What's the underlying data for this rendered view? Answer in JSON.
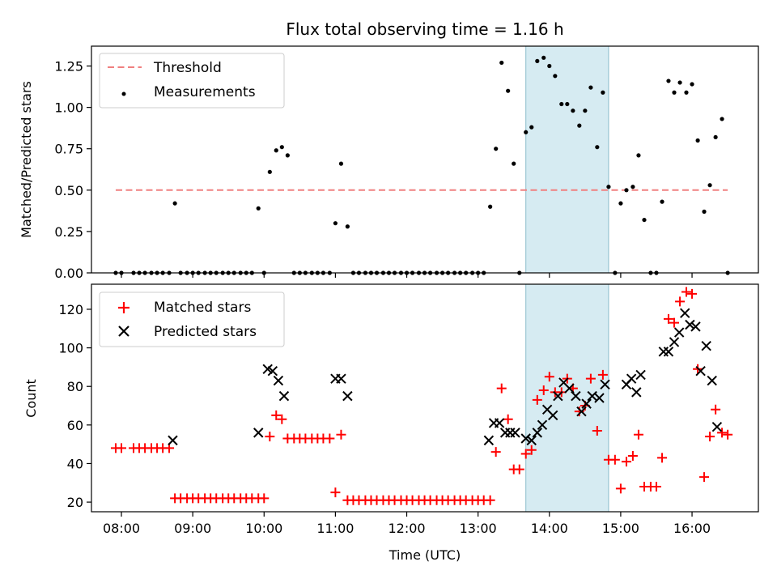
{
  "title": "Flux total observing time = 1.16 h",
  "colors": {
    "threshold": "#f08080",
    "matched": "#ff0000",
    "predicted": "#000000",
    "measurement": "#000000",
    "highlight": "#add8e6"
  },
  "chart_data": [
    {
      "type": "scatter",
      "ylabel": "Matched/Predicted stars",
      "xlabel": "",
      "xlim": [
        7.58,
        16.93
      ],
      "ylim": [
        0,
        1.37
      ],
      "yticks": [
        0.0,
        0.25,
        0.5,
        0.75,
        1.0,
        1.25
      ],
      "ytick_labels": [
        "0.00",
        "0.25",
        "0.50",
        "0.75",
        "1.00",
        "1.25"
      ],
      "xticks": [
        8,
        9,
        10,
        11,
        12,
        13,
        14,
        15,
        16
      ],
      "highlight_span": [
        13.67,
        14.83
      ],
      "legend_position": "top-left",
      "legend": [
        {
          "label": "Threshold"
        },
        {
          "label": "Measurements"
        }
      ],
      "threshold": {
        "name": "Threshold",
        "x": [
          7.92,
          16.5
        ],
        "y": 0.5
      },
      "series": [
        {
          "name": "Measurements",
          "x": [
            7.92,
            8.0,
            8.17,
            8.25,
            8.33,
            8.42,
            8.5,
            8.58,
            8.67,
            8.75,
            8.83,
            8.92,
            9.0,
            9.08,
            9.17,
            9.25,
            9.33,
            9.42,
            9.5,
            9.58,
            9.67,
            9.75,
            9.83,
            9.92,
            10.0,
            10.08,
            10.17,
            10.25,
            10.33,
            10.42,
            10.5,
            10.58,
            10.67,
            10.75,
            10.83,
            10.92,
            11.0,
            11.08,
            11.17,
            11.25,
            11.33,
            11.42,
            11.5,
            11.58,
            11.67,
            11.75,
            11.83,
            11.92,
            12.0,
            12.08,
            12.17,
            12.25,
            12.33,
            12.42,
            12.5,
            12.58,
            12.67,
            12.75,
            12.83,
            12.92,
            13.0,
            13.08,
            13.17,
            13.25,
            13.33,
            13.42,
            13.5,
            13.58,
            13.67,
            13.75,
            13.83,
            13.92,
            14.0,
            14.08,
            14.17,
            14.25,
            14.33,
            14.42,
            14.5,
            14.58,
            14.67,
            14.75,
            14.83,
            14.92,
            15.0,
            15.08,
            15.17,
            15.25,
            15.33,
            15.42,
            15.5,
            15.58,
            15.67,
            15.75,
            15.83,
            15.92,
            16.0,
            16.08,
            16.17,
            16.25,
            16.33,
            16.42,
            16.5
          ],
          "y": [
            0,
            0,
            0,
            0,
            0,
            0,
            0,
            0,
            0,
            0.42,
            0,
            0,
            0,
            0,
            0,
            0,
            0,
            0,
            0,
            0,
            0,
            0,
            0,
            0.39,
            0,
            0.61,
            0.74,
            0.76,
            0.71,
            0,
            0,
            0,
            0,
            0,
            0,
            0,
            0.3,
            0.66,
            0.28,
            0,
            0,
            0,
            0,
            0,
            0,
            0,
            0,
            0,
            0,
            0,
            0,
            0,
            0,
            0,
            0,
            0,
            0,
            0,
            0,
            0,
            0,
            0,
            0.4,
            0.75,
            1.27,
            1.1,
            0.66,
            0,
            0.85,
            0.88,
            1.28,
            1.3,
            1.25,
            1.19,
            1.02,
            1.02,
            0.98,
            0.89,
            0.98,
            1.12,
            0.76,
            1.09,
            0.52,
            0,
            0.42,
            0.5,
            0.52,
            0.71,
            0.32,
            0,
            0,
            0.43,
            1.16,
            1.09,
            1.15,
            1.09,
            1.14,
            0.8,
            0.37,
            0.53,
            0.82,
            0.93,
            0
          ]
        }
      ]
    },
    {
      "type": "scatter",
      "ylabel": "Count",
      "xlabel": "Time (UTC)",
      "xlim": [
        7.58,
        16.93
      ],
      "ylim": [
        15,
        133
      ],
      "yticks": [
        20,
        40,
        60,
        80,
        100,
        120
      ],
      "xticks": [
        8,
        9,
        10,
        11,
        12,
        13,
        14,
        15,
        16
      ],
      "xtick_labels": [
        "08:00",
        "09:00",
        "10:00",
        "11:00",
        "12:00",
        "13:00",
        "14:00",
        "15:00",
        "16:00"
      ],
      "highlight_span": [
        13.67,
        14.83
      ],
      "legend_position": "top-left",
      "legend": [
        {
          "label": "Matched stars"
        },
        {
          "label": "Predicted stars"
        }
      ],
      "series": [
        {
          "name": "Matched stars",
          "x": [
            7.92,
            8.0,
            8.17,
            8.25,
            8.33,
            8.42,
            8.5,
            8.58,
            8.67,
            8.75,
            8.83,
            8.92,
            9.0,
            9.08,
            9.17,
            9.25,
            9.33,
            9.42,
            9.5,
            9.58,
            9.67,
            9.75,
            9.83,
            9.92,
            10.0,
            10.08,
            10.17,
            10.25,
            10.33,
            10.42,
            10.5,
            10.58,
            10.67,
            10.75,
            10.83,
            10.92,
            11.0,
            11.08,
            11.17,
            11.25,
            11.33,
            11.42,
            11.5,
            11.58,
            11.67,
            11.75,
            11.83,
            11.92,
            12.0,
            12.08,
            12.17,
            12.25,
            12.33,
            12.42,
            12.5,
            12.58,
            12.67,
            12.75,
            12.83,
            12.92,
            13.0,
            13.08,
            13.17,
            13.25,
            13.33,
            13.42,
            13.5,
            13.58,
            13.67,
            13.75,
            13.83,
            13.92,
            14.0,
            14.08,
            14.17,
            14.25,
            14.33,
            14.42,
            14.5,
            14.58,
            14.67,
            14.75,
            14.83,
            14.92,
            15.0,
            15.08,
            15.17,
            15.25,
            15.33,
            15.42,
            15.5,
            15.58,
            15.67,
            15.75,
            15.83,
            15.92,
            16.0,
            16.08,
            16.17,
            16.25,
            16.33,
            16.42,
            16.5
          ],
          "y": [
            48,
            48,
            48,
            48,
            48,
            48,
            48,
            48,
            48,
            22,
            22,
            22,
            22,
            22,
            22,
            22,
            22,
            22,
            22,
            22,
            22,
            22,
            22,
            22,
            22,
            54,
            65,
            63,
            53,
            53,
            53,
            53,
            53,
            53,
            53,
            53,
            25,
            55,
            21,
            21,
            21,
            21,
            21,
            21,
            21,
            21,
            21,
            21,
            21,
            21,
            21,
            21,
            21,
            21,
            21,
            21,
            21,
            21,
            21,
            21,
            21,
            21,
            21,
            46,
            79,
            63,
            37,
            37,
            45,
            47,
            73,
            78,
            85,
            77,
            77,
            84,
            79,
            67,
            70,
            84,
            57,
            86,
            42,
            42,
            27,
            41,
            44,
            55,
            28,
            28,
            28,
            43,
            115,
            113,
            124,
            129,
            128,
            89,
            33,
            54,
            68,
            56,
            55
          ]
        },
        {
          "name": "Predicted stars",
          "x": [
            8.72,
            9.92,
            10.05,
            10.12,
            10.2,
            10.28,
            11.0,
            11.08,
            11.17,
            13.15,
            13.22,
            13.3,
            13.38,
            13.45,
            13.52,
            13.67,
            13.75,
            13.83,
            13.9,
            13.97,
            14.05,
            14.12,
            14.2,
            14.28,
            14.37,
            14.45,
            14.52,
            14.6,
            14.7,
            14.78,
            15.08,
            15.15,
            15.22,
            15.28,
            15.6,
            15.67,
            15.75,
            15.82,
            15.9,
            15.97,
            16.05,
            16.12,
            16.2,
            16.28,
            16.35
          ],
          "y": [
            52,
            56,
            89,
            88,
            83,
            75,
            84,
            84,
            75,
            52,
            61,
            61,
            56,
            56,
            56,
            53,
            52,
            56,
            60,
            68,
            65,
            75,
            82,
            79,
            75,
            67,
            71,
            75,
            74,
            81,
            81,
            84,
            77,
            86,
            98,
            98,
            103,
            108,
            118,
            112,
            111,
            88,
            101,
            83,
            59
          ]
        }
      ]
    }
  ]
}
